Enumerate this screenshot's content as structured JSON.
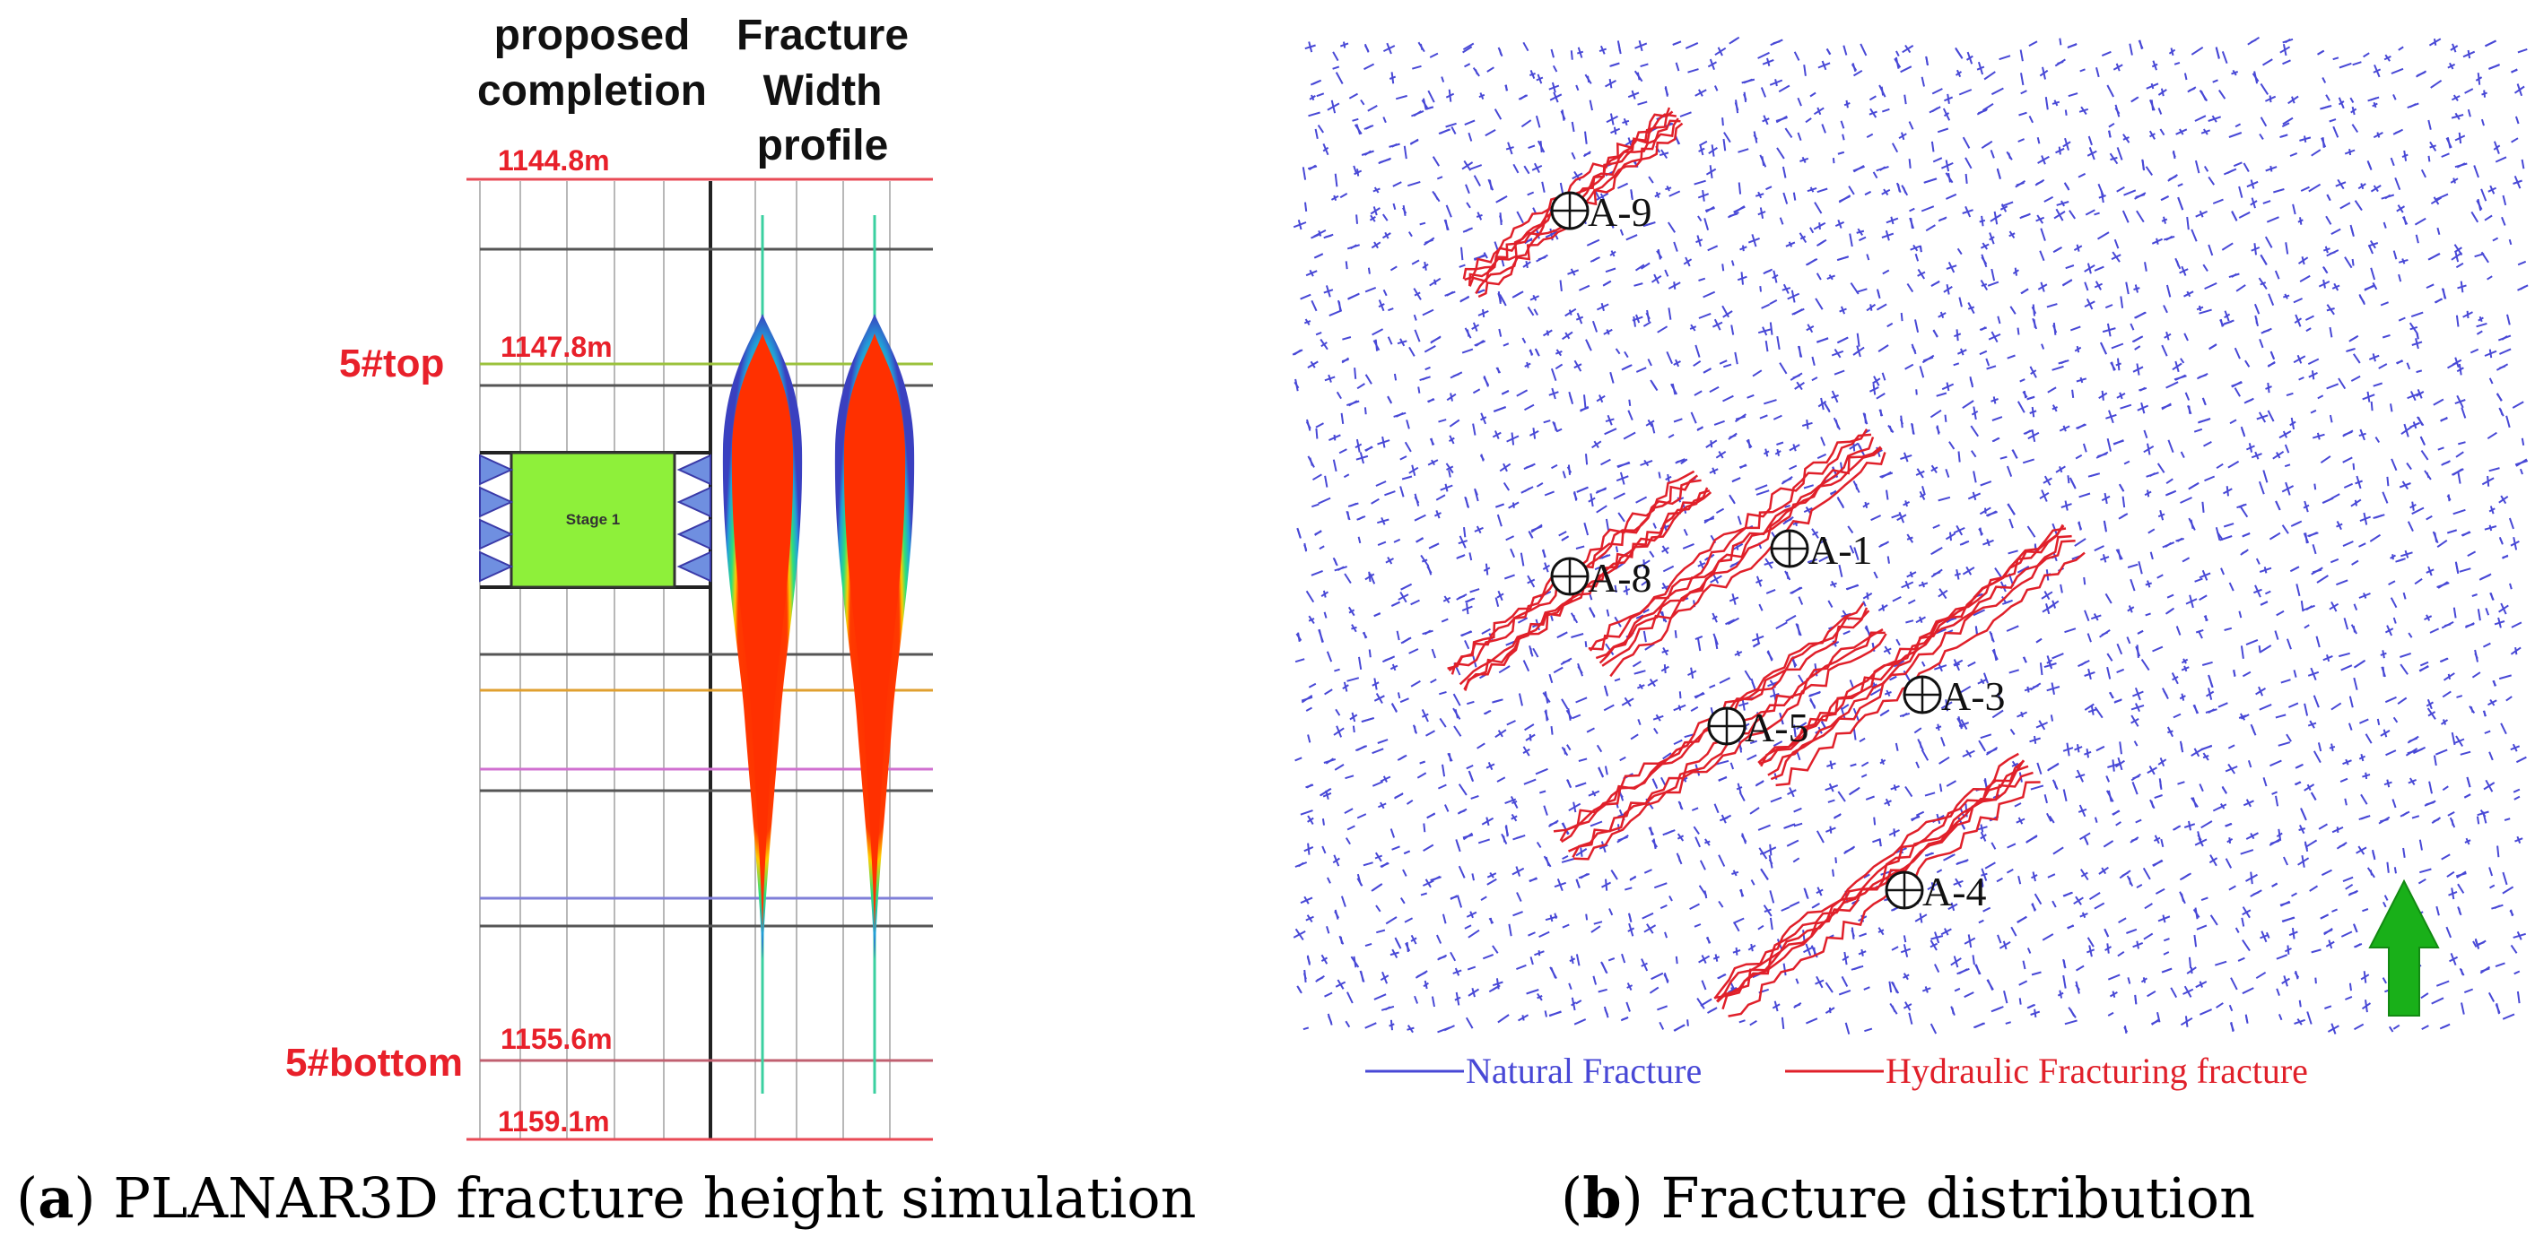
{
  "panel_a": {
    "headers": {
      "completion": [
        "proposed",
        "completion"
      ],
      "profile": [
        "Fracture",
        "Width",
        "profile"
      ]
    },
    "depths": {
      "d1": "1144.8m",
      "d2": "1147.8m",
      "d3": "1155.6m",
      "d4": "1159.1m"
    },
    "zone_top": "5#top",
    "zone_bottom": "5#bottom",
    "stage_label": "Stage 1",
    "colors": {
      "depth_red": "#e8202a",
      "stage_green": "#8ef03a",
      "perf_blue": "#6f8fe0",
      "frac_red": "#ff3000"
    }
  },
  "panel_b": {
    "wells": [
      "A-9",
      "A-1",
      "A-8",
      "A-3",
      "A-5",
      "A-4"
    ],
    "legend": {
      "natural": "Natural Fracture",
      "hydraulic": "Hydraulic Fracturing fracture"
    },
    "colors": {
      "natural": "#3b3bd0",
      "hydraulic": "#e0202a",
      "arrow": "#19b019"
    },
    "north_arrow": "arrow-up"
  },
  "captions": {
    "a": {
      "label": "a",
      "text": " PLANAR3D fracture height simulation"
    },
    "b": {
      "label": "b",
      "text": " Fracture distribution"
    }
  }
}
